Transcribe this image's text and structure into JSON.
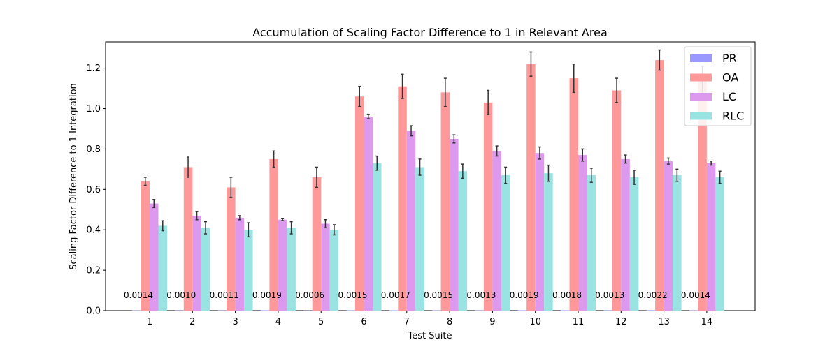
{
  "chart_data": {
    "type": "bar",
    "title": "Accumulation of Scaling Factor Difference to 1 in Relevant Area",
    "xlabel": "Test Suite",
    "ylabel": "Scaling Factor Difference to 1 Integration",
    "ylim": [
      0,
      1.33
    ],
    "yticks": [
      "0.0",
      "0.2",
      "0.4",
      "0.6",
      "0.8",
      "1.0",
      "1.2"
    ],
    "categories": [
      "1",
      "2",
      "3",
      "4",
      "5",
      "6",
      "7",
      "8",
      "9",
      "10",
      "11",
      "12",
      "13",
      "14"
    ],
    "legend_position": "top-right",
    "grid": false,
    "series": [
      {
        "name": "PR",
        "color": "#9999ff",
        "values": [
          0.0014,
          0.001,
          0.0011,
          0.0019,
          0.0006,
          0.0015,
          0.0017,
          0.0015,
          0.0013,
          0.0019,
          0.0018,
          0.0013,
          0.0022,
          0.0014
        ],
        "errors": [
          0,
          0,
          0,
          0,
          0,
          0,
          0,
          0,
          0,
          0,
          0,
          0,
          0,
          0
        ],
        "value_labels": [
          "0.0014",
          "0.0010",
          "0.0011",
          "0.0019",
          "0.0006",
          "0.0015",
          "0.0017",
          "0.0015",
          "0.0013",
          "0.0019",
          "0.0018",
          "0.0013",
          "0.0022",
          "0.0014"
        ]
      },
      {
        "name": "OA",
        "color": "#ff9999",
        "values": [
          0.64,
          0.71,
          0.61,
          0.75,
          0.66,
          1.06,
          1.11,
          1.08,
          1.03,
          1.22,
          1.15,
          1.09,
          1.24,
          1.14
        ],
        "errors": [
          0.02,
          0.05,
          0.05,
          0.04,
          0.05,
          0.05,
          0.06,
          0.07,
          0.06,
          0.06,
          0.07,
          0.06,
          0.05,
          0.07
        ]
      },
      {
        "name": "LC",
        "color": "#dd99ee",
        "values": [
          0.53,
          0.47,
          0.46,
          0.45,
          0.43,
          0.96,
          0.89,
          0.85,
          0.79,
          0.78,
          0.77,
          0.75,
          0.74,
          0.73
        ],
        "errors": [
          0.02,
          0.02,
          0.01,
          0.005,
          0.02,
          0.01,
          0.025,
          0.02,
          0.025,
          0.03,
          0.03,
          0.02,
          0.015,
          0.01
        ]
      },
      {
        "name": "RLC",
        "color": "#99e3e3",
        "values": [
          0.42,
          0.41,
          0.4,
          0.41,
          0.4,
          0.73,
          0.71,
          0.69,
          0.67,
          0.68,
          0.67,
          0.66,
          0.67,
          0.66
        ],
        "errors": [
          0.025,
          0.03,
          0.035,
          0.03,
          0.025,
          0.035,
          0.04,
          0.035,
          0.04,
          0.04,
          0.035,
          0.035,
          0.03,
          0.03
        ]
      }
    ]
  }
}
